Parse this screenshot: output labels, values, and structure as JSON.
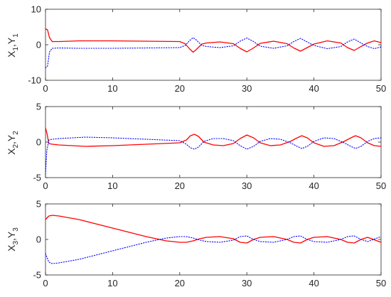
{
  "colors": {
    "series_x": "#ff0000",
    "series_y": "#0000ff",
    "axis": "#262626",
    "background": "#ffffff"
  },
  "chart_data": [
    {
      "type": "line",
      "ylabel": {
        "main_1": "X",
        "sub_1": "1",
        "sep": ",",
        "main_2": "Y",
        "sub_2": "1"
      },
      "xlim": [
        0,
        50
      ],
      "ylim": [
        -10,
        10
      ],
      "xticks": [
        0,
        10,
        20,
        30,
        40,
        50
      ],
      "yticks": [
        -10,
        0,
        10
      ],
      "grid": false,
      "series": [
        {
          "color": "#ff0000",
          "style": "solid",
          "x": [
            0,
            0.3,
            0.6,
            1.0,
            2,
            5,
            10,
            15,
            20,
            20.8,
            21.5,
            22.0,
            22.5,
            23.3,
            24,
            26,
            28,
            29,
            30,
            31,
            32,
            34,
            36,
            37,
            38,
            39,
            40,
            42,
            44,
            45,
            46,
            47,
            48,
            49,
            50
          ],
          "y": [
            4.5,
            4.2,
            2.0,
            0.9,
            0.9,
            1.1,
            1.1,
            1.0,
            0.9,
            0.3,
            -1.2,
            -2.1,
            -1.3,
            0.2,
            0.5,
            0.8,
            0.3,
            -1.0,
            -2.0,
            -0.9,
            0.4,
            1.0,
            0.3,
            -0.9,
            -1.8,
            -0.8,
            0.2,
            1.1,
            0.5,
            -0.8,
            -1.6,
            -0.5,
            0.5,
            1.1,
            0.6
          ]
        },
        {
          "color": "#0000ff",
          "style": "dotted",
          "x": [
            0,
            0.3,
            0.6,
            1.0,
            2,
            5,
            10,
            15,
            20,
            20.8,
            21.5,
            22.0,
            22.5,
            23.3,
            24,
            26,
            28,
            29,
            30,
            31,
            32,
            34,
            36,
            37,
            38,
            39,
            40,
            42,
            44,
            45,
            46,
            47,
            48,
            49,
            50
          ],
          "y": [
            -6.5,
            -6.0,
            -2.0,
            -1.0,
            -0.9,
            -1.0,
            -1.0,
            -0.9,
            -0.8,
            -0.2,
            1.2,
            2.0,
            1.3,
            -0.2,
            -0.5,
            -0.8,
            -0.3,
            1.0,
            1.9,
            0.9,
            -0.4,
            -1.0,
            -0.3,
            0.9,
            1.8,
            0.8,
            -0.2,
            -1.1,
            -0.5,
            0.8,
            1.6,
            0.5,
            -0.5,
            -1.1,
            -0.6
          ]
        }
      ]
    },
    {
      "type": "line",
      "ylabel": {
        "main_1": "X",
        "sub_1": "2",
        "sep": ",",
        "main_2": "Y",
        "sub_2": "2"
      },
      "xlim": [
        0,
        50
      ],
      "ylim": [
        -5,
        5
      ],
      "xticks": [
        0,
        10,
        20,
        30,
        40,
        50
      ],
      "yticks": [
        -5,
        0,
        5
      ],
      "grid": false,
      "series": [
        {
          "color": "#ff0000",
          "style": "solid",
          "x": [
            0,
            0.2,
            0.5,
            1.0,
            2,
            4,
            6,
            10,
            15,
            20,
            21,
            21.6,
            22.2,
            22.8,
            23.6,
            25,
            26.5,
            28,
            29,
            30,
            31,
            32,
            33.5,
            35,
            36.5,
            37.5,
            38.2,
            39,
            40,
            41.5,
            43,
            44.5,
            45.5,
            46.2,
            47,
            48,
            49,
            50
          ],
          "y": [
            2.0,
            1.3,
            -0.2,
            -0.3,
            -0.4,
            -0.5,
            -0.6,
            -0.5,
            -0.3,
            -0.1,
            0.3,
            0.9,
            1.1,
            0.8,
            0.0,
            -0.4,
            -0.5,
            -0.2,
            0.5,
            1.0,
            0.6,
            -0.1,
            -0.5,
            -0.4,
            0.1,
            0.6,
            0.9,
            0.6,
            -0.1,
            -0.6,
            -0.5,
            0.1,
            0.6,
            0.9,
            0.6,
            -0.1,
            -0.5,
            -0.6
          ]
        },
        {
          "color": "#0000ff",
          "style": "dotted",
          "x": [
            0,
            0.2,
            0.5,
            1.0,
            2,
            4,
            6,
            10,
            15,
            20,
            21,
            21.6,
            22.2,
            22.8,
            23.6,
            25,
            26.5,
            28,
            29,
            30,
            31,
            32,
            33.5,
            35,
            36.5,
            37.5,
            38.2,
            39,
            40,
            41.5,
            43,
            44.5,
            45.5,
            46.2,
            47,
            48,
            49,
            50
          ],
          "y": [
            -4.5,
            -1.2,
            0.3,
            0.4,
            0.5,
            0.6,
            0.7,
            0.6,
            0.4,
            0.2,
            -0.3,
            -0.8,
            -1.0,
            -0.7,
            0.1,
            0.5,
            0.5,
            0.2,
            -0.5,
            -1.0,
            -0.6,
            0.1,
            0.5,
            0.4,
            -0.1,
            -0.6,
            -0.9,
            -0.6,
            0.1,
            0.6,
            0.5,
            -0.1,
            -0.6,
            -0.9,
            -0.6,
            0.1,
            0.5,
            0.6
          ]
        }
      ]
    },
    {
      "type": "line",
      "ylabel": {
        "main_1": "X",
        "sub_1": "3",
        "sep": ",",
        "main_2": "Y",
        "sub_2": "3"
      },
      "xlim": [
        0,
        50
      ],
      "ylim": [
        -5,
        5
      ],
      "xticks": [
        0,
        10,
        20,
        30,
        40,
        50
      ],
      "yticks": [
        -5,
        0,
        5
      ],
      "grid": false,
      "series": [
        {
          "color": "#ff0000",
          "style": "solid",
          "x": [
            0,
            0.5,
            1,
            2,
            5,
            10,
            15,
            18,
            20,
            21,
            22,
            23,
            24,
            26,
            28,
            29,
            30,
            31,
            32,
            34,
            36,
            37,
            38,
            39,
            40,
            42,
            44,
            45,
            46,
            47,
            48,
            50
          ],
          "y": [
            2.8,
            3.3,
            3.4,
            3.3,
            2.8,
            1.6,
            0.4,
            -0.2,
            -0.4,
            -0.4,
            -0.2,
            0.1,
            0.3,
            0.4,
            0.1,
            -0.4,
            -0.5,
            0.0,
            0.3,
            0.4,
            0.0,
            -0.4,
            -0.5,
            0.0,
            0.3,
            0.4,
            0.0,
            -0.4,
            -0.5,
            0.0,
            0.3,
            -0.4
          ]
        },
        {
          "color": "#0000ff",
          "style": "dotted",
          "x": [
            0,
            0.5,
            1,
            2,
            5,
            10,
            15,
            18,
            20,
            21,
            22,
            23,
            24,
            26,
            28,
            29,
            30,
            31,
            32,
            34,
            36,
            37,
            38,
            39,
            40,
            42,
            44,
            45,
            46,
            47,
            48,
            50
          ],
          "y": [
            -2.0,
            -3.2,
            -3.4,
            -3.3,
            -2.8,
            -1.6,
            -0.4,
            0.2,
            0.4,
            0.4,
            0.2,
            -0.1,
            -0.3,
            -0.4,
            -0.1,
            0.4,
            0.5,
            0.0,
            -0.3,
            -0.4,
            0.0,
            0.4,
            0.5,
            0.0,
            -0.3,
            -0.4,
            0.0,
            0.4,
            0.5,
            0.0,
            -0.3,
            0.4
          ]
        }
      ]
    }
  ]
}
